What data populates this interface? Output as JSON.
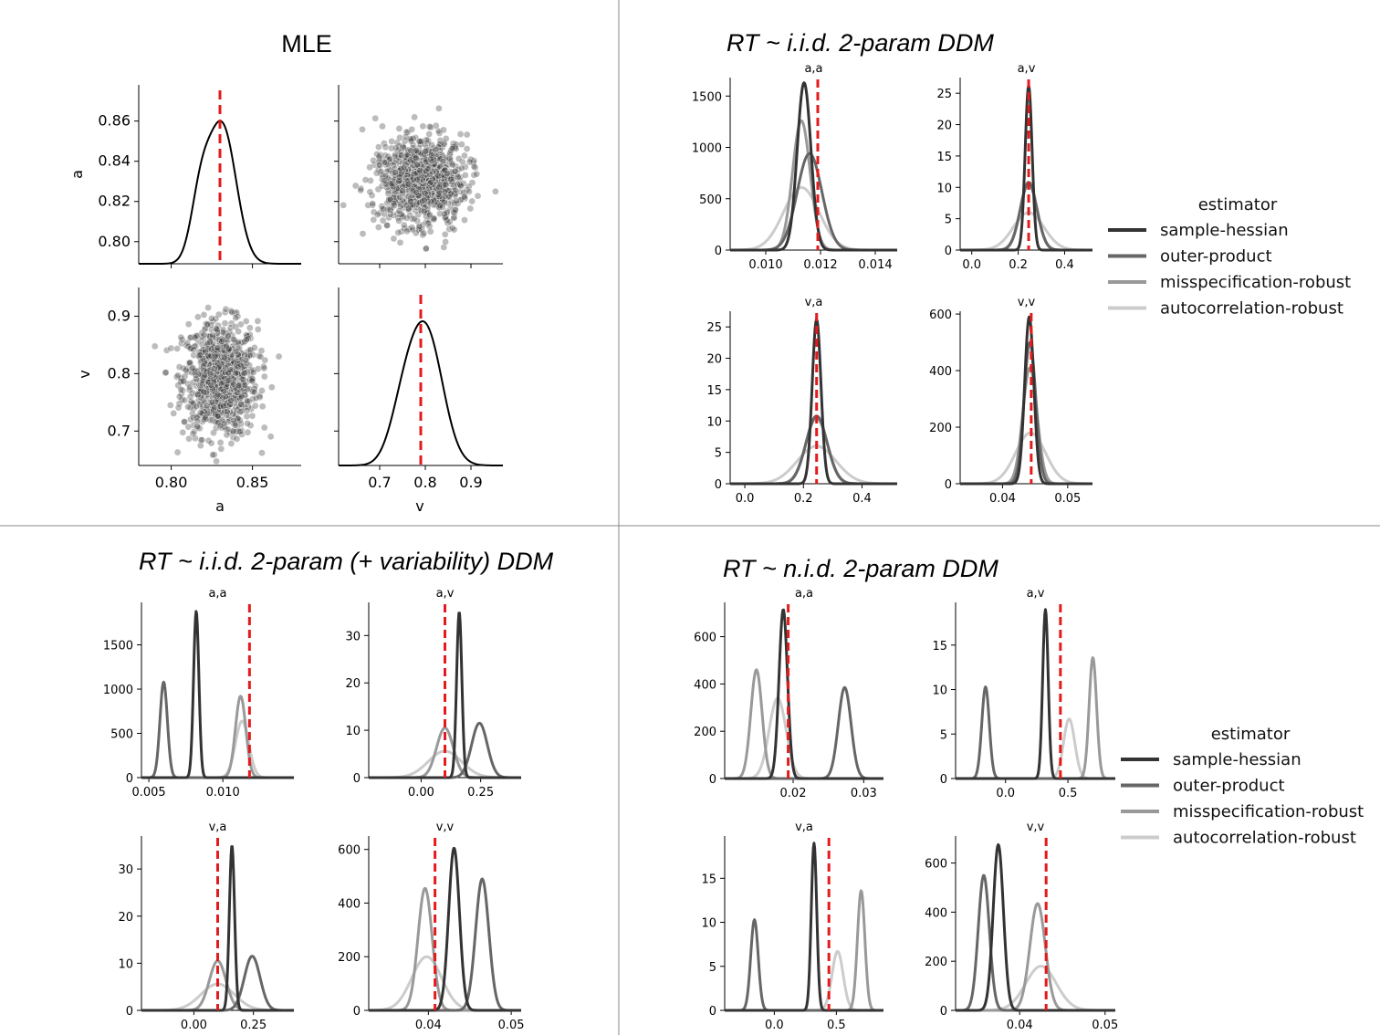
{
  "chart_data": [
    {
      "type": "pairplot",
      "title": "MLE",
      "variables": [
        "a",
        "v"
      ],
      "marginals": {
        "a": {
          "mean": 0.83,
          "sd": 0.0115,
          "xlim": [
            0.78,
            0.88
          ],
          "ylim": [
            0.789,
            0.878
          ],
          "true_value": 0.83
        },
        "v": {
          "mean": 0.79,
          "sd": 0.05,
          "xlim": [
            0.61,
            0.97
          ],
          "ylim": [
            0.64,
            0.95
          ],
          "true_value": 0.79
        }
      },
      "ticks": {
        "a": [
          "0.80",
          "0.82",
          "0.84",
          "0.86"
        ],
        "v": [
          "0.7",
          "0.8",
          "0.9"
        ],
        "a_x": [
          "0.80",
          "0.85"
        ],
        "v_x": [
          "0.7",
          "0.8",
          "0.9"
        ]
      },
      "scatter": {
        "n_points": 900,
        "a_mean": 0.83,
        "a_sd": 0.0115,
        "v_mean": 0.79,
        "v_sd": 0.05
      }
    },
    {
      "type": "line",
      "title": "RT ~ i.i.d. 2-param DDM",
      "panels": [
        {
          "name": "a,a",
          "xlim": [
            0.0087,
            0.0148
          ],
          "ylim": [
            0,
            1680
          ],
          "xticks": [
            "0.010",
            "0.012",
            "0.014"
          ],
          "yticks": [
            "0",
            "500",
            "1000",
            "1500"
          ],
          "true_value": 0.0119,
          "series": [
            {
              "name": "sample-hessian",
              "mu": 0.0114,
              "sd": 0.00025,
              "peak": 1630
            },
            {
              "name": "outer-product",
              "mu": 0.0116,
              "sd": 0.00045,
              "peak": 940
            },
            {
              "name": "misspecification-robust",
              "mu": 0.0113,
              "sd": 0.00032,
              "peak": 1260
            },
            {
              "name": "autocorrelation-robust",
              "mu": 0.0113,
              "sd": 0.00065,
              "peak": 610
            }
          ]
        },
        {
          "name": "a,v",
          "xlim": [
            -0.05,
            0.52
          ],
          "ylim": [
            0,
            27.5
          ],
          "xticks": [
            "0.0",
            "0.2",
            "0.4"
          ],
          "yticks": [
            "0",
            "5",
            "10",
            "15",
            "20",
            "25"
          ],
          "true_value": 0.245,
          "series": [
            {
              "name": "sample-hessian",
              "mu": 0.245,
              "sd": 0.015,
              "peak": 26.2
            },
            {
              "name": "outer-product",
              "mu": 0.245,
              "sd": 0.036,
              "peak": 10.8
            },
            {
              "name": "misspecification-robust",
              "mu": 0.245,
              "sd": 0.037,
              "peak": 10.5
            },
            {
              "name": "autocorrelation-robust",
              "mu": 0.245,
              "sd": 0.066,
              "peak": 6.0
            }
          ]
        },
        {
          "name": "v,a",
          "xlim": [
            -0.05,
            0.52
          ],
          "ylim": [
            0,
            27.5
          ],
          "xticks": [
            "0.0",
            "0.2",
            "0.4"
          ],
          "yticks": [
            "0",
            "5",
            "10",
            "15",
            "20",
            "25"
          ],
          "true_value": 0.245,
          "series": [
            {
              "name": "sample-hessian",
              "mu": 0.245,
              "sd": 0.015,
              "peak": 26.2
            },
            {
              "name": "outer-product",
              "mu": 0.245,
              "sd": 0.036,
              "peak": 10.8
            },
            {
              "name": "misspecification-robust",
              "mu": 0.245,
              "sd": 0.037,
              "peak": 10.5
            },
            {
              "name": "autocorrelation-robust",
              "mu": 0.245,
              "sd": 0.066,
              "peak": 6.0
            }
          ]
        },
        {
          "name": "v,v",
          "xlim": [
            0.0335,
            0.0538
          ],
          "ylim": [
            0,
            610
          ],
          "xticks": [
            "0.04",
            "0.05"
          ],
          "yticks": [
            "0",
            "200",
            "400",
            "600"
          ],
          "true_value": 0.0444,
          "series": [
            {
              "name": "sample-hessian",
              "mu": 0.0441,
              "sd": 0.0007,
              "peak": 590
            },
            {
              "name": "outer-product",
              "mu": 0.0442,
              "sd": 0.0009,
              "peak": 500
            },
            {
              "name": "misspecification-robust",
              "mu": 0.0442,
              "sd": 0.0011,
              "peak": 410
            },
            {
              "name": "autocorrelation-robust",
              "mu": 0.0443,
              "sd": 0.0023,
              "peak": 180
            }
          ]
        }
      ]
    },
    {
      "type": "line",
      "title": "RT ~ i.i.d. 2-param (+ variability) DDM",
      "panels": [
        {
          "name": "a,a",
          "xlim": [
            0.0045,
            0.0148
          ],
          "ylim": [
            0,
            1980
          ],
          "xticks": [
            "0.005",
            "0.010"
          ],
          "yticks": [
            "0",
            "500",
            "1000",
            "1500"
          ],
          "true_value": 0.0118,
          "series": [
            {
              "name": "sample-hessian",
              "mu": 0.0082,
              "sd": 0.00018,
              "peak": 1880
            },
            {
              "name": "outer-product",
              "mu": 0.006,
              "sd": 0.00025,
              "peak": 1080
            },
            {
              "name": "misspecification-robust",
              "mu": 0.0112,
              "sd": 0.00035,
              "peak": 920
            },
            {
              "name": "autocorrelation-robust",
              "mu": 0.0113,
              "sd": 0.00045,
              "peak": 640
            }
          ]
        },
        {
          "name": "a,v",
          "xlim": [
            -0.22,
            0.42
          ],
          "ylim": [
            0,
            37
          ],
          "xticks": [
            "0.00",
            "0.25"
          ],
          "yticks": [
            "0",
            "10",
            "20",
            "30"
          ],
          "true_value": 0.1,
          "series": [
            {
              "name": "sample-hessian",
              "mu": 0.16,
              "sd": 0.011,
              "peak": 35
            },
            {
              "name": "outer-product",
              "mu": 0.245,
              "sd": 0.033,
              "peak": 11.5
            },
            {
              "name": "misspecification-robust",
              "mu": 0.1,
              "sd": 0.035,
              "peak": 10.5
            },
            {
              "name": "autocorrelation-robust",
              "mu": 0.1,
              "sd": 0.07,
              "peak": 5.6
            }
          ]
        },
        {
          "name": "v,a",
          "xlim": [
            -0.22,
            0.42
          ],
          "ylim": [
            0,
            37
          ],
          "xticks": [
            "0.00",
            "0.25"
          ],
          "yticks": [
            "0",
            "10",
            "20",
            "30"
          ],
          "true_value": 0.1,
          "series": [
            {
              "name": "sample-hessian",
              "mu": 0.16,
              "sd": 0.011,
              "peak": 35
            },
            {
              "name": "outer-product",
              "mu": 0.245,
              "sd": 0.033,
              "peak": 11.5
            },
            {
              "name": "misspecification-robust",
              "mu": 0.1,
              "sd": 0.035,
              "peak": 10.5
            },
            {
              "name": "autocorrelation-robust",
              "mu": 0.1,
              "sd": 0.07,
              "peak": 5.6
            }
          ]
        },
        {
          "name": "v,v",
          "xlim": [
            0.0328,
            0.0512
          ],
          "ylim": [
            0,
            650
          ],
          "xticks": [
            "0.04",
            "0.05"
          ],
          "yticks": [
            "0",
            "200",
            "400",
            "600"
          ],
          "true_value": 0.0408,
          "series": [
            {
              "name": "sample-hessian",
              "mu": 0.0431,
              "sd": 0.00065,
              "peak": 605
            },
            {
              "name": "outer-product",
              "mu": 0.0465,
              "sd": 0.0008,
              "peak": 490
            },
            {
              "name": "misspecification-robust",
              "mu": 0.0396,
              "sd": 0.00085,
              "peak": 455
            },
            {
              "name": "autocorrelation-robust",
              "mu": 0.0398,
              "sd": 0.0018,
              "peak": 200
            }
          ]
        }
      ]
    },
    {
      "type": "line",
      "title": "RT ~ n.i.d. 2-param DDM",
      "panels": [
        {
          "name": "a,a",
          "xlim": [
            0.0103,
            0.0328
          ],
          "ylim": [
            0,
            745
          ],
          "xticks": [
            "0.02",
            "0.03"
          ],
          "yticks": [
            "0",
            "200",
            "400",
            "600"
          ],
          "true_value": 0.0193,
          "series": [
            {
              "name": "sample-hessian",
              "mu": 0.0186,
              "sd": 0.0006,
              "peak": 715
            },
            {
              "name": "outer-product",
              "mu": 0.0273,
              "sd": 0.0009,
              "peak": 385
            },
            {
              "name": "misspecification-robust",
              "mu": 0.0148,
              "sd": 0.0008,
              "peak": 460
            },
            {
              "name": "autocorrelation-robust",
              "mu": 0.0178,
              "sd": 0.0012,
              "peak": 340
            }
          ]
        },
        {
          "name": "a,v",
          "xlim": [
            -0.4,
            0.88
          ],
          "ylim": [
            0,
            19.8
          ],
          "xticks": [
            "0.0",
            "0.5"
          ],
          "yticks": [
            "0",
            "5",
            "10",
            "15"
          ],
          "true_value": 0.44,
          "series": [
            {
              "name": "sample-hessian",
              "mu": 0.32,
              "sd": 0.022,
              "peak": 19
            },
            {
              "name": "outer-product",
              "mu": -0.16,
              "sd": 0.03,
              "peak": 10.3
            },
            {
              "name": "misspecification-robust",
              "mu": 0.7,
              "sd": 0.03,
              "peak": 13.6
            },
            {
              "name": "autocorrelation-robust",
              "mu": 0.51,
              "sd": 0.045,
              "peak": 6.7
            }
          ]
        },
        {
          "name": "v,a",
          "xlim": [
            -0.4,
            0.88
          ],
          "ylim": [
            0,
            19.8
          ],
          "xticks": [
            "0.0",
            "0.5"
          ],
          "yticks": [
            "0",
            "5",
            "10",
            "15"
          ],
          "true_value": 0.44,
          "series": [
            {
              "name": "sample-hessian",
              "mu": 0.32,
              "sd": 0.022,
              "peak": 19
            },
            {
              "name": "outer-product",
              "mu": -0.16,
              "sd": 0.03,
              "peak": 10.3
            },
            {
              "name": "misspecification-robust",
              "mu": 0.7,
              "sd": 0.03,
              "peak": 13.6
            },
            {
              "name": "autocorrelation-robust",
              "mu": 0.51,
              "sd": 0.045,
              "peak": 6.7
            }
          ]
        },
        {
          "name": "v,v",
          "xlim": [
            0.0325,
            0.0512
          ],
          "ylim": [
            0,
            710
          ],
          "xticks": [
            "0.04",
            "0.05"
          ],
          "yticks": [
            "0",
            "200",
            "400",
            "600"
          ],
          "true_value": 0.0431,
          "series": [
            {
              "name": "sample-hessian",
              "mu": 0.0375,
              "sd": 0.0006,
              "peak": 675
            },
            {
              "name": "outer-product",
              "mu": 0.0358,
              "sd": 0.00065,
              "peak": 550
            },
            {
              "name": "misspecification-robust",
              "mu": 0.0421,
              "sd": 0.0009,
              "peak": 435
            },
            {
              "name": "autocorrelation-robust",
              "mu": 0.0425,
              "sd": 0.0018,
              "peak": 180
            }
          ]
        }
      ]
    }
  ],
  "legend": {
    "title": "estimator",
    "entries": [
      {
        "name": "sample-hessian",
        "color": "#333333"
      },
      {
        "name": "outer-product",
        "color": "#666666"
      },
      {
        "name": "misspecification-robust",
        "color": "#999999"
      },
      {
        "name": "autocorrelation-robust",
        "color": "#cccccc"
      }
    ]
  },
  "colors": {
    "true_value_line": "#e41a1c",
    "scatter_point": "#404040"
  }
}
